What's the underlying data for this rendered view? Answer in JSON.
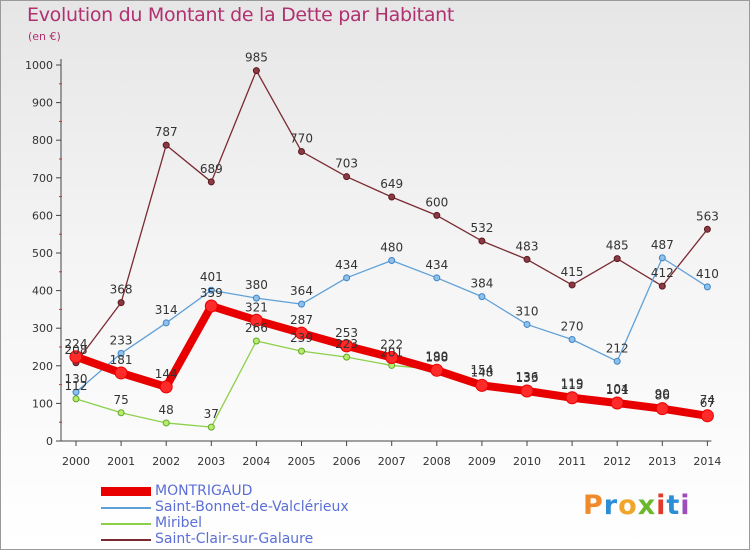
{
  "title": "Evolution du Montant de la Dette par Habitant",
  "unit": "(en €)",
  "logo_text": "Proxiti",
  "chart_data": {
    "type": "line",
    "x": [
      "2000",
      "2001",
      "2002",
      "2003",
      "2004",
      "2005",
      "2006",
      "2007",
      "2008",
      "2009",
      "2010",
      "2011",
      "2012",
      "2013",
      "2014"
    ],
    "ylim": [
      0,
      1000
    ],
    "yticks": [
      0,
      100,
      200,
      300,
      400,
      500,
      600,
      700,
      800,
      900,
      1000
    ],
    "grid": false,
    "legend_position": "bottom-left",
    "series": [
      {
        "name": "MONTRIGAUD",
        "color": "#e80000",
        "values": [
          224,
          181,
          144,
          359,
          321,
          287,
          253,
          222,
          188,
          148,
          133,
          115,
          101,
          86,
          67
        ],
        "labels": [
          "224",
          "181",
          "144",
          "359",
          "321",
          "287",
          "253",
          "222",
          "188",
          "148",
          "133",
          "115",
          "101",
          "86",
          "67"
        ]
      },
      {
        "name": "Saint-Bonnet-de-Valclérieux",
        "color": "#5fa0d8",
        "values": [
          130,
          233,
          314,
          401,
          380,
          364,
          434,
          480,
          434,
          384,
          310,
          270,
          212,
          487,
          410
        ],
        "labels": [
          "130",
          "233",
          "314",
          "401",
          "380",
          "364",
          "434",
          "480",
          "434",
          "384",
          "310",
          "270",
          "212",
          "487",
          "410"
        ]
      },
      {
        "name": "Miribel",
        "color": "#8cd04a",
        "values": [
          112,
          75,
          48,
          37,
          266,
          239,
          223,
          201,
          190,
          154,
          136,
          119,
          104,
          90,
          74
        ],
        "labels": [
          "112",
          "75",
          "48",
          "37",
          "266",
          "239",
          "223",
          "201",
          "190",
          "154",
          "136",
          "119",
          "104",
          "90",
          "74"
        ]
      },
      {
        "name": "Saint-Clair-sur-Galaure",
        "color": "#7a2a32",
        "values": [
          208,
          368,
          787,
          689,
          985,
          770,
          703,
          649,
          600,
          532,
          483,
          415,
          485,
          412,
          563
        ],
        "labels": [
          "208",
          "368",
          "787",
          "689",
          "985",
          "770",
          "703",
          "649",
          "600",
          "532",
          "483",
          "415",
          "485",
          "412",
          "563"
        ]
      }
    ]
  }
}
